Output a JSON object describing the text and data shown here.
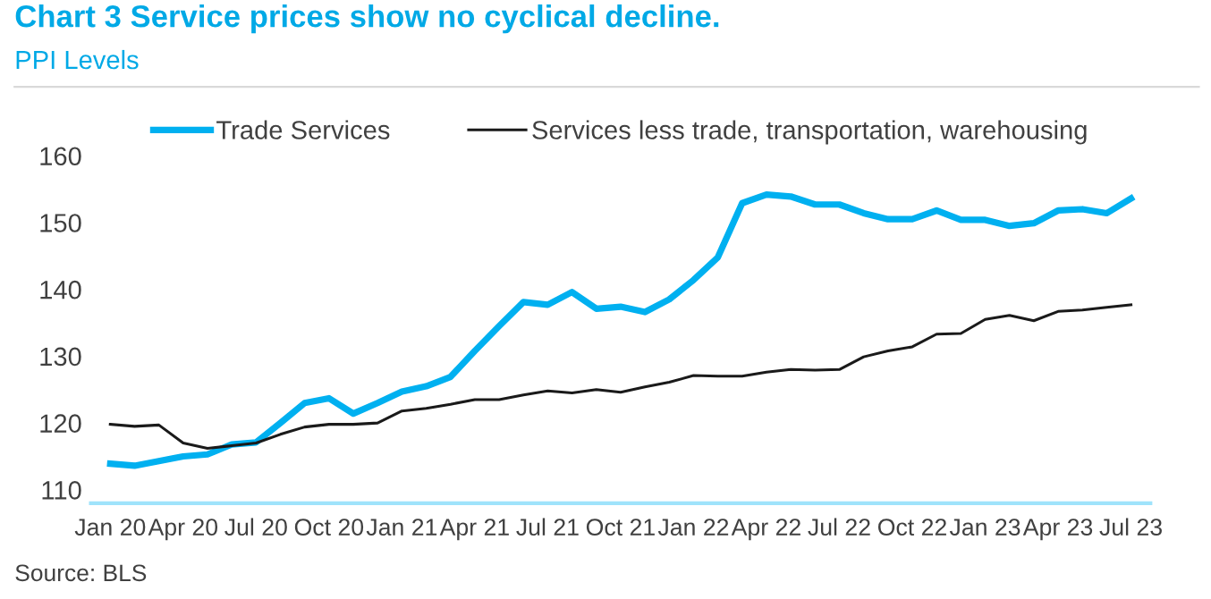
{
  "chart_data": {
    "type": "line",
    "title": "Chart 3 Service prices show no cyclical decline.",
    "subtitle": "PPI Levels",
    "categories": [
      "Jan 20",
      null,
      null,
      "Apr 20",
      null,
      null,
      "Jul 20",
      null,
      null,
      "Oct 20",
      null,
      null,
      "Jan 21",
      null,
      null,
      "Apr 21",
      null,
      null,
      "Jul 21",
      null,
      null,
      "Oct 21",
      null,
      null,
      "Jan 22",
      null,
      null,
      "Apr 22",
      null,
      null,
      "Jul 22",
      null,
      null,
      "Oct 22",
      null,
      null,
      "Jan 23",
      null,
      null,
      "Apr 23",
      null,
      null,
      "Jul 23"
    ],
    "series": [
      {
        "name": "Trade Services",
        "color": "#00b0f0",
        "values": [
          113.9,
          113.6,
          114.3,
          115.0,
          115.3,
          116.8,
          117.1,
          120.0,
          123.0,
          123.7,
          121.4,
          123.0,
          124.7,
          125.5,
          126.9,
          130.8,
          134.5,
          138.1,
          137.7,
          139.6,
          137.1,
          137.4,
          136.6,
          138.5,
          141.4,
          144.8,
          152.9,
          154.2,
          153.9,
          152.7,
          152.7,
          151.4,
          150.5,
          150.5,
          151.8,
          150.4,
          150.4,
          149.5,
          149.9,
          151.8,
          152.0,
          151.4,
          153.6
        ]
      },
      {
        "name": "Services less trade, transportation, warehousing",
        "color": "#1a1a1a",
        "values": [
          119.8,
          119.5,
          119.7,
          117.0,
          116.2,
          116.6,
          117.0,
          118.3,
          119.4,
          119.8,
          119.8,
          120.0,
          121.8,
          122.2,
          122.8,
          123.5,
          123.5,
          124.2,
          124.8,
          124.5,
          125.0,
          124.6,
          125.4,
          126.1,
          127.1,
          127.0,
          127.0,
          127.6,
          128.0,
          127.9,
          128.0,
          129.9,
          130.8,
          131.4,
          133.3,
          133.4,
          135.5,
          136.1,
          135.3,
          136.7,
          136.9,
          137.3,
          137.7
        ]
      }
    ],
    "ylim": [
      108,
      160
    ],
    "yticks": [
      110,
      120,
      130,
      140,
      150,
      160
    ],
    "grid": false,
    "legend": "top",
    "marker": "none",
    "line_style": "solid",
    "annotations": [
      "Source: BLS"
    ]
  }
}
